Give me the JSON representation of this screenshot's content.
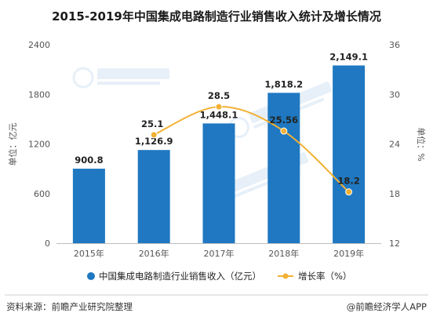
{
  "chart_data": {
    "type": "bar",
    "title": "2015-2019年中国集成电路制造行业销售收入统计及增长情况",
    "categories": [
      "2015年",
      "2016年",
      "2017年",
      "2018年",
      "2019年"
    ],
    "series": [
      {
        "name": "中国集成电路制造行业销售收入（亿元）",
        "type": "bar",
        "axis": "left",
        "values": [
          900.8,
          1126.9,
          1448.1,
          1818.2,
          2149.1
        ],
        "labels": [
          "900.8",
          "1,126.9",
          "1,448.1",
          "1,818.2",
          "2,149.1"
        ]
      },
      {
        "name": "增长率（%）",
        "type": "line",
        "axis": "right",
        "values": [
          null,
          25.1,
          28.5,
          25.56,
          18.2
        ],
        "labels": [
          "",
          "25.1",
          "28.5",
          "25.56",
          "18.2"
        ]
      }
    ],
    "ylabel_left": "单位：亿元",
    "ylabel_right": "单位：%",
    "ylim_left": [
      0,
      2400
    ],
    "yticks_left": [
      0,
      600,
      1200,
      1800,
      2400
    ],
    "ylim_right": [
      12,
      36
    ],
    "yticks_right": [
      12,
      18,
      24,
      30,
      36
    ],
    "legend_position": "bottom",
    "grid": false,
    "colors": {
      "bar": "#1f78c1",
      "line": "#f2b135",
      "marker_fill": "#f2b135",
      "marker_stroke": "#ffffff"
    }
  },
  "footer": {
    "source": "资料来源：前瞻产业研究院整理",
    "brand": "@前瞻经济学人APP"
  }
}
